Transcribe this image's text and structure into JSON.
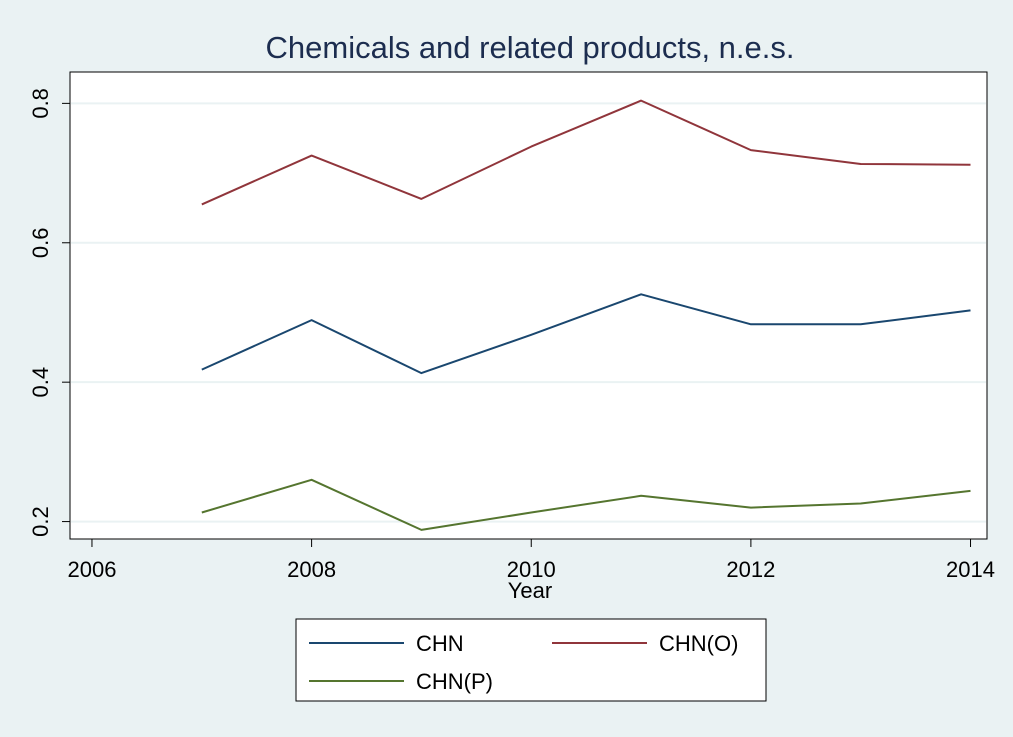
{
  "chart_data": {
    "type": "line",
    "title": "Chemicals and related products, n.e.s.",
    "xlabel": "Year",
    "ylabel": "",
    "xlim": [
      2005.8,
      2014.15
    ],
    "ylim": [
      0.175,
      0.845
    ],
    "x_ticks": [
      2006,
      2008,
      2010,
      2012,
      2014
    ],
    "y_ticks": [
      0.2,
      0.4,
      0.6,
      0.8
    ],
    "grid": true,
    "legend_position": "bottom",
    "x": [
      2007,
      2008,
      2009,
      2010,
      2011,
      2012,
      2013,
      2014
    ],
    "series": [
      {
        "name": "CHN",
        "color": "#1a476f",
        "values": [
          0.418,
          0.489,
          0.413,
          0.468,
          0.526,
          0.483,
          0.483,
          0.503
        ]
      },
      {
        "name": "CHN(O)",
        "color": "#90353b",
        "values": [
          0.655,
          0.725,
          0.663,
          0.738,
          0.804,
          0.733,
          0.713,
          0.712
        ]
      },
      {
        "name": "CHN(P)",
        "color": "#55752f",
        "values": [
          0.213,
          0.26,
          0.188,
          0.213,
          0.237,
          0.22,
          0.226,
          0.244
        ]
      }
    ]
  }
}
